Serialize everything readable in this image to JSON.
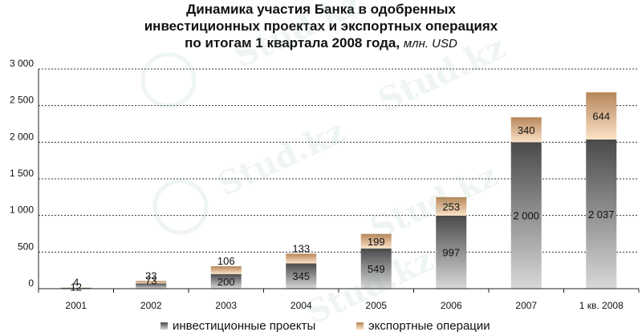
{
  "title": {
    "line1": "Динамика участия Банка в одобренных",
    "line2": "инвестиционных проектах и экспортных операциях",
    "line3": "по итогам 1 квартала 2008 года,",
    "unit": "млн. USD"
  },
  "watermark_text": "Stud.kz",
  "colors": {
    "invest_dark": "#4a4a4a",
    "invest_light": "#d8d8d8",
    "export_dark": "#b7865a",
    "export_light": "#fbe3c8",
    "grid": "#333333"
  },
  "chart_data": {
    "type": "bar",
    "stacked": true,
    "categories": [
      "2001",
      "2002",
      "2003",
      "2004",
      "2005",
      "2006",
      "2007",
      "1 кв. 2008"
    ],
    "series": [
      {
        "name": "инвестиционные проекты",
        "values": [
          12,
          73,
          200,
          345,
          549,
          997,
          2000,
          2037
        ]
      },
      {
        "name": "экспортные операции",
        "values": [
          4,
          33,
          106,
          133,
          199,
          253,
          340,
          644
        ]
      }
    ],
    "value_labels": {
      "инвестиционные проекты": [
        "12",
        "73",
        "200",
        "345",
        "549",
        "997",
        "2 000",
        "2 037"
      ],
      "экспортные операции": [
        "4",
        "33",
        "106",
        "133",
        "199",
        "253",
        "340",
        "644"
      ]
    },
    "yticks": [
      "0",
      "500",
      "1 000",
      "1 500",
      "2 000",
      "2 500",
      "3 000"
    ],
    "ytick_values": [
      0,
      500,
      1000,
      1500,
      2000,
      2500,
      3000
    ],
    "ylim": [
      0,
      3000
    ],
    "grid": true,
    "legend_position": "bottom"
  }
}
